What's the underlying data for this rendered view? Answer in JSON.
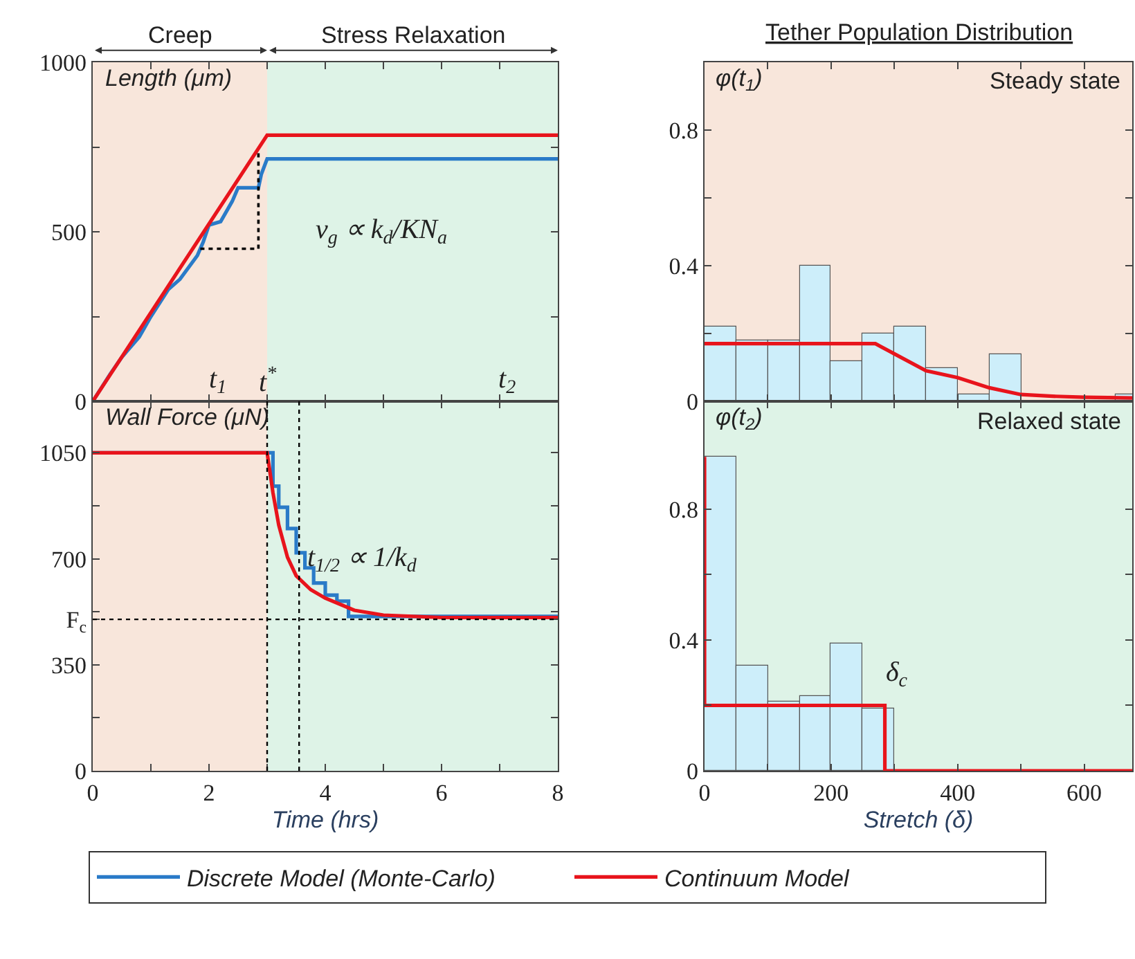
{
  "chart_data": [
    {
      "type": "line",
      "ylabel": "Length (μm)",
      "xlim": [
        0,
        8
      ],
      "ylim": [
        0,
        1000
      ],
      "xticks": [
        0,
        1,
        2,
        3,
        4,
        5,
        6,
        7,
        8
      ],
      "yticks": [
        0,
        {
          "value": 250,
          "label": null
        },
        500,
        {
          "value": 750,
          "label": null
        },
        1000
      ],
      "tick_labels": "y",
      "legend": "bottom",
      "grid": false,
      "bands": [
        {
          "axis": "x",
          "from": 0,
          "to": 3,
          "label": "Creep",
          "color": "#f8e6db"
        },
        {
          "axis": "x",
          "from": 3,
          "to": 8,
          "label": "Stress Relaxation",
          "color": "#def3e7"
        }
      ],
      "annotations": [
        "v$_{g}$ ∝ k$_{d}$/KN$_{a}$",
        "t$_{1}$",
        "t$^{*}$",
        "t$_{2}$"
      ],
      "series": [
        {
          "name": "Discrete Model (Monte-Carlo)",
          "color": "#2a7bc8",
          "x": [
            0,
            0.3,
            0.5,
            0.8,
            1.0,
            1.3,
            1.5,
            1.8,
            1.9,
            2.0,
            2.2,
            2.4,
            2.5,
            2.85,
            2.9,
            3.0,
            8
          ],
          "values": [
            0,
            80,
            130,
            190,
            250,
            330,
            360,
            430,
            470,
            520,
            530,
            590,
            630,
            630,
            670,
            715,
            715
          ]
        },
        {
          "name": "Continuum Model",
          "color": "#e8141c",
          "x": [
            0,
            3,
            8
          ],
          "values": [
            0,
            785,
            785
          ]
        },
        {
          "color": "#000000",
          "line_style": "dotted",
          "x": [
            1.85,
            2.85,
            2.85
          ],
          "values": [
            450,
            450,
            740
          ]
        }
      ]
    },
    {
      "type": "line",
      "ylabel": "Wall Force (μN)",
      "xlabel": "Time (hrs)",
      "xlim": [
        0,
        8
      ],
      "ylim": [
        0,
        1220
      ],
      "xticks": [
        0,
        {
          "value": 1,
          "label": null
        },
        2,
        {
          "value": 3,
          "label": null
        },
        4,
        {
          "value": 5,
          "label": null
        },
        6,
        {
          "value": 7,
          "label": null
        },
        8
      ],
      "yticks": [
        0,
        {
          "value": 175,
          "label": null
        },
        350,
        {
          "value": 500,
          "label": "F$_{c}$"
        },
        {
          "value": 525,
          "label": null
        },
        700,
        {
          "value": 875,
          "label": null
        },
        1050
      ],
      "grid": false,
      "bands": [
        {
          "axis": "x",
          "from": 0,
          "to": 3,
          "color": "#f8e6db"
        },
        {
          "axis": "x",
          "from": 3,
          "to": 8,
          "color": "#def3e7"
        }
      ],
      "ref_lines": [
        {
          "axis": "y",
          "value": 500,
          "line_style": "dotted",
          "color": "#000000"
        },
        {
          "axis": "x",
          "value": 3,
          "line_style": "dotted",
          "color": "#000000"
        },
        {
          "axis": "x",
          "value": 3.55,
          "line_style": "dotted",
          "color": "#000000"
        }
      ],
      "annotations": [
        "t$_{1/2}$ ∝ 1/k$_{d}$"
      ],
      "series": [
        {
          "type": "step",
          "color": "#2a7bc8",
          "x": [
            0,
            3.0,
            3.1,
            3.2,
            3.35,
            3.5,
            3.65,
            3.8,
            4.0,
            4.2,
            4.4,
            8
          ],
          "values": [
            1050,
            1050,
            940,
            870,
            800,
            720,
            670,
            620,
            580,
            560,
            510,
            510
          ]
        },
        {
          "color": "#e8141c",
          "x": [
            0,
            3.0,
            3.1,
            3.2,
            3.35,
            3.5,
            3.75,
            4.0,
            4.5,
            5,
            6,
            8
          ],
          "values": [
            1050,
            1050,
            918,
            811,
            705,
            644,
            598,
            570,
            530,
            514,
            506,
            506
          ]
        }
      ]
    },
    {
      "type": "histogram",
      "title": "Tether Population Distribution",
      "subtitle": "Steady state",
      "ylabel": "φ(t$_{1}$)",
      "xlim": [
        0,
        676
      ],
      "ylim": [
        0,
        1
      ],
      "xticks": [
        0,
        100,
        200,
        300,
        400,
        500,
        600
      ],
      "yticks": [
        0,
        {
          "value": 0.2,
          "label": null
        },
        0.4,
        {
          "value": 0.6,
          "label": null
        },
        0.8
      ],
      "tick_labels": "y",
      "grid": false,
      "bands": [
        {
          "axis": "x",
          "from": 0,
          "to": 676,
          "color": "#f8e6db"
        }
      ],
      "series": [
        {
          "color": "#cdeefa",
          "colors": [
            "#cdeefa",
            "#cdeefa",
            "#cdeefa",
            "#cdeefa",
            "#cdeefa",
            "#cdeefa",
            "#cdeefa",
            "#cdeefa",
            "#cdeefa",
            "#cdeefa",
            "#555555",
            "#cdeefa",
            "#cdeefa",
            "#cdeefa"
          ],
          "bins": [
            0,
            50,
            100,
            150,
            200,
            250,
            300,
            350,
            400,
            450,
            500,
            550,
            600,
            650,
            700
          ],
          "values": [
            0.22,
            0.18,
            0.18,
            0.4,
            0.12,
            0.2,
            0.22,
            0.1,
            0.02,
            0.14,
            null,
            null,
            null,
            0.02
          ]
        },
        {
          "type": "line",
          "color": "#e8141c",
          "x": [
            0,
            270,
            300,
            350,
            400,
            450,
            500,
            550,
            600,
            676
          ],
          "values": [
            0.17,
            0.17,
            0.14,
            0.09,
            0.07,
            0.04,
            0.02,
            0.015,
            0.012,
            0.01
          ]
        }
      ]
    },
    {
      "type": "histogram",
      "subtitle": "Relaxed state",
      "ylabel": "φ(t$_{2}$)",
      "xlabel": "Stretch (δ)",
      "xlim": [
        0,
        676
      ],
      "ylim": [
        0,
        1.13
      ],
      "xticks": [
        0,
        {
          "value": 100,
          "label": null
        },
        200,
        {
          "value": 300,
          "label": null
        },
        400,
        {
          "value": 500,
          "label": null
        },
        600
      ],
      "yticks": [
        0,
        {
          "value": 0.2,
          "label": null
        },
        0.4,
        {
          "value": 0.6,
          "label": null
        },
        0.8
      ],
      "grid": false,
      "bands": [
        {
          "axis": "x",
          "from": 0,
          "to": 676,
          "color": "#def3e7"
        }
      ],
      "annotations": [
        "δ$_{c}$"
      ],
      "series": [
        {
          "color": "#cdeefa",
          "bins": [
            0,
            50,
            100,
            150,
            200,
            250,
            300
          ],
          "values": [
            0.96,
            0.32,
            0.21,
            0.23,
            0.39,
            0.19
          ]
        },
        {
          "type": "line",
          "color": "#e8141c",
          "x": [
            0,
            0,
            285,
            285,
            676
          ],
          "values": [
            0.96,
            0.2,
            0.2,
            0,
            0
          ]
        }
      ]
    }
  ]
}
